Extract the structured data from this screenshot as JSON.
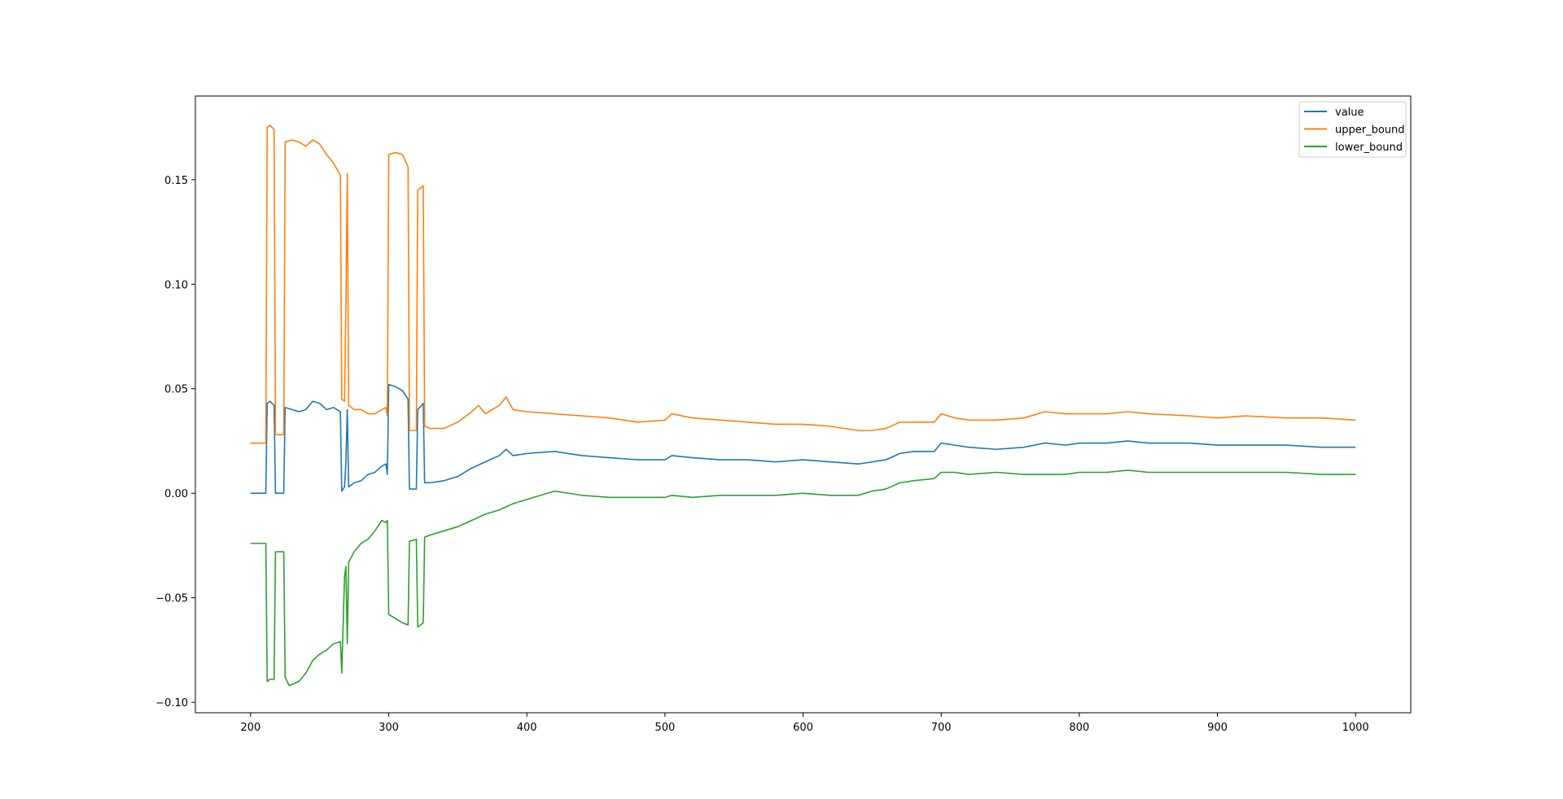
{
  "chart_data": {
    "type": "line",
    "title": "",
    "xlabel": "",
    "ylabel": "",
    "xlim": [
      160,
      1040
    ],
    "ylim": [
      -0.105,
      0.19
    ],
    "xticks": [
      200,
      300,
      400,
      500,
      600,
      700,
      800,
      900,
      1000
    ],
    "xtick_labels": [
      "200",
      "300",
      "400",
      "500",
      "600",
      "700",
      "800",
      "900",
      "1000"
    ],
    "yticks": [
      -0.1,
      -0.05,
      0.0,
      0.05,
      0.1,
      0.15
    ],
    "ytick_labels": [
      "−0.10",
      "−0.05",
      "0.00",
      "0.05",
      "0.10",
      "0.15"
    ],
    "grid": false,
    "legend_position": "upper right",
    "series": [
      {
        "name": "value",
        "color": "#1f77b4",
        "points": [
          [
            200,
            0.0
          ],
          [
            211,
            0.0
          ],
          [
            212,
            0.043
          ],
          [
            214,
            0.044
          ],
          [
            217,
            0.042
          ],
          [
            218,
            0.0
          ],
          [
            224,
            0.0
          ],
          [
            225,
            0.041
          ],
          [
            230,
            0.04
          ],
          [
            235,
            0.039
          ],
          [
            240,
            0.04
          ],
          [
            245,
            0.044
          ],
          [
            250,
            0.043
          ],
          [
            255,
            0.04
          ],
          [
            260,
            0.041
          ],
          [
            265,
            0.039
          ],
          [
            266,
            0.001
          ],
          [
            268,
            0.003
          ],
          [
            269,
            0.015
          ],
          [
            270,
            0.04
          ],
          [
            271,
            0.003
          ],
          [
            275,
            0.005
          ],
          [
            280,
            0.006
          ],
          [
            285,
            0.009
          ],
          [
            290,
            0.01
          ],
          [
            295,
            0.013
          ],
          [
            298,
            0.014
          ],
          [
            299,
            0.009
          ],
          [
            300,
            0.052
          ],
          [
            305,
            0.051
          ],
          [
            310,
            0.049
          ],
          [
            314,
            0.045
          ],
          [
            315,
            0.002
          ],
          [
            320,
            0.002
          ],
          [
            321,
            0.04
          ],
          [
            325,
            0.043
          ],
          [
            326,
            0.005
          ],
          [
            330,
            0.005
          ],
          [
            340,
            0.006
          ],
          [
            350,
            0.008
          ],
          [
            360,
            0.012
          ],
          [
            370,
            0.015
          ],
          [
            380,
            0.018
          ],
          [
            385,
            0.021
          ],
          [
            390,
            0.018
          ],
          [
            400,
            0.019
          ],
          [
            420,
            0.02
          ],
          [
            440,
            0.018
          ],
          [
            460,
            0.017
          ],
          [
            480,
            0.016
          ],
          [
            500,
            0.016
          ],
          [
            505,
            0.018
          ],
          [
            520,
            0.017
          ],
          [
            540,
            0.016
          ],
          [
            560,
            0.016
          ],
          [
            580,
            0.015
          ],
          [
            600,
            0.016
          ],
          [
            620,
            0.015
          ],
          [
            640,
            0.014
          ],
          [
            650,
            0.015
          ],
          [
            660,
            0.016
          ],
          [
            670,
            0.019
          ],
          [
            680,
            0.02
          ],
          [
            695,
            0.02
          ],
          [
            700,
            0.024
          ],
          [
            710,
            0.023
          ],
          [
            720,
            0.022
          ],
          [
            740,
            0.021
          ],
          [
            760,
            0.022
          ],
          [
            775,
            0.024
          ],
          [
            790,
            0.023
          ],
          [
            800,
            0.024
          ],
          [
            820,
            0.024
          ],
          [
            835,
            0.025
          ],
          [
            850,
            0.024
          ],
          [
            880,
            0.024
          ],
          [
            900,
            0.023
          ],
          [
            920,
            0.023
          ],
          [
            950,
            0.023
          ],
          [
            975,
            0.022
          ],
          [
            1000,
            0.022
          ]
        ]
      },
      {
        "name": "upper_bound",
        "color": "#ff7f0e",
        "points": [
          [
            200,
            0.024
          ],
          [
            205,
            0.024
          ],
          [
            211,
            0.024
          ],
          [
            212,
            0.175
          ],
          [
            214,
            0.176
          ],
          [
            217,
            0.174
          ],
          [
            218,
            0.028
          ],
          [
            224,
            0.028
          ],
          [
            225,
            0.168
          ],
          [
            230,
            0.169
          ],
          [
            235,
            0.168
          ],
          [
            240,
            0.166
          ],
          [
            245,
            0.169
          ],
          [
            250,
            0.167
          ],
          [
            255,
            0.162
          ],
          [
            260,
            0.158
          ],
          [
            265,
            0.152
          ],
          [
            266,
            0.045
          ],
          [
            268,
            0.044
          ],
          [
            269,
            0.09
          ],
          [
            270,
            0.153
          ],
          [
            271,
            0.042
          ],
          [
            275,
            0.04
          ],
          [
            280,
            0.04
          ],
          [
            285,
            0.038
          ],
          [
            290,
            0.038
          ],
          [
            295,
            0.04
          ],
          [
            298,
            0.041
          ],
          [
            299,
            0.037
          ],
          [
            300,
            0.162
          ],
          [
            305,
            0.163
          ],
          [
            310,
            0.162
          ],
          [
            314,
            0.156
          ],
          [
            315,
            0.03
          ],
          [
            320,
            0.03
          ],
          [
            321,
            0.145
          ],
          [
            325,
            0.147
          ],
          [
            326,
            0.032
          ],
          [
            330,
            0.031
          ],
          [
            340,
            0.031
          ],
          [
            350,
            0.034
          ],
          [
            360,
            0.039
          ],
          [
            365,
            0.042
          ],
          [
            370,
            0.038
          ],
          [
            380,
            0.042
          ],
          [
            385,
            0.046
          ],
          [
            390,
            0.04
          ],
          [
            400,
            0.039
          ],
          [
            420,
            0.038
          ],
          [
            440,
            0.037
          ],
          [
            460,
            0.036
          ],
          [
            480,
            0.034
          ],
          [
            500,
            0.035
          ],
          [
            505,
            0.038
          ],
          [
            520,
            0.036
          ],
          [
            540,
            0.035
          ],
          [
            560,
            0.034
          ],
          [
            580,
            0.033
          ],
          [
            600,
            0.033
          ],
          [
            620,
            0.032
          ],
          [
            640,
            0.03
          ],
          [
            650,
            0.03
          ],
          [
            660,
            0.031
          ],
          [
            670,
            0.034
          ],
          [
            680,
            0.034
          ],
          [
            695,
            0.034
          ],
          [
            700,
            0.038
          ],
          [
            710,
            0.036
          ],
          [
            720,
            0.035
          ],
          [
            740,
            0.035
          ],
          [
            760,
            0.036
          ],
          [
            775,
            0.039
          ],
          [
            790,
            0.038
          ],
          [
            800,
            0.038
          ],
          [
            820,
            0.038
          ],
          [
            835,
            0.039
          ],
          [
            850,
            0.038
          ],
          [
            880,
            0.037
          ],
          [
            900,
            0.036
          ],
          [
            920,
            0.037
          ],
          [
            950,
            0.036
          ],
          [
            975,
            0.036
          ],
          [
            1000,
            0.035
          ]
        ]
      },
      {
        "name": "lower_bound",
        "color": "#2ca02c",
        "points": [
          [
            200,
            -0.024
          ],
          [
            205,
            -0.024
          ],
          [
            211,
            -0.024
          ],
          [
            212,
            -0.09
          ],
          [
            214,
            -0.089
          ],
          [
            217,
            -0.089
          ],
          [
            218,
            -0.028
          ],
          [
            224,
            -0.028
          ],
          [
            225,
            -0.088
          ],
          [
            228,
            -0.092
          ],
          [
            235,
            -0.09
          ],
          [
            240,
            -0.086
          ],
          [
            245,
            -0.08
          ],
          [
            250,
            -0.077
          ],
          [
            255,
            -0.075
          ],
          [
            260,
            -0.072
          ],
          [
            265,
            -0.071
          ],
          [
            266,
            -0.086
          ],
          [
            268,
            -0.04
          ],
          [
            269,
            -0.035
          ],
          [
            270,
            -0.072
          ],
          [
            271,
            -0.033
          ],
          [
            275,
            -0.028
          ],
          [
            280,
            -0.024
          ],
          [
            285,
            -0.022
          ],
          [
            290,
            -0.018
          ],
          [
            295,
            -0.013
          ],
          [
            298,
            -0.014
          ],
          [
            299,
            -0.013
          ],
          [
            300,
            -0.058
          ],
          [
            305,
            -0.06
          ],
          [
            310,
            -0.062
          ],
          [
            314,
            -0.063
          ],
          [
            315,
            -0.023
          ],
          [
            320,
            -0.022
          ],
          [
            321,
            -0.064
          ],
          [
            325,
            -0.062
          ],
          [
            326,
            -0.021
          ],
          [
            330,
            -0.02
          ],
          [
            340,
            -0.018
          ],
          [
            350,
            -0.016
          ],
          [
            360,
            -0.013
          ],
          [
            370,
            -0.01
          ],
          [
            380,
            -0.008
          ],
          [
            390,
            -0.005
          ],
          [
            400,
            -0.003
          ],
          [
            410,
            -0.001
          ],
          [
            420,
            0.001
          ],
          [
            440,
            -0.001
          ],
          [
            460,
            -0.002
          ],
          [
            480,
            -0.002
          ],
          [
            500,
            -0.002
          ],
          [
            505,
            -0.001
          ],
          [
            520,
            -0.002
          ],
          [
            540,
            -0.001
          ],
          [
            560,
            -0.001
          ],
          [
            580,
            -0.001
          ],
          [
            600,
            0.0
          ],
          [
            620,
            -0.001
          ],
          [
            640,
            -0.001
          ],
          [
            650,
            0.001
          ],
          [
            660,
            0.002
          ],
          [
            670,
            0.005
          ],
          [
            680,
            0.006
          ],
          [
            695,
            0.007
          ],
          [
            700,
            0.01
          ],
          [
            710,
            0.01
          ],
          [
            720,
            0.009
          ],
          [
            740,
            0.01
          ],
          [
            760,
            0.009
          ],
          [
            775,
            0.009
          ],
          [
            790,
            0.009
          ],
          [
            800,
            0.01
          ],
          [
            820,
            0.01
          ],
          [
            835,
            0.011
          ],
          [
            850,
            0.01
          ],
          [
            880,
            0.01
          ],
          [
            900,
            0.01
          ],
          [
            920,
            0.01
          ],
          [
            950,
            0.01
          ],
          [
            975,
            0.009
          ],
          [
            1000,
            0.009
          ]
        ]
      }
    ]
  }
}
